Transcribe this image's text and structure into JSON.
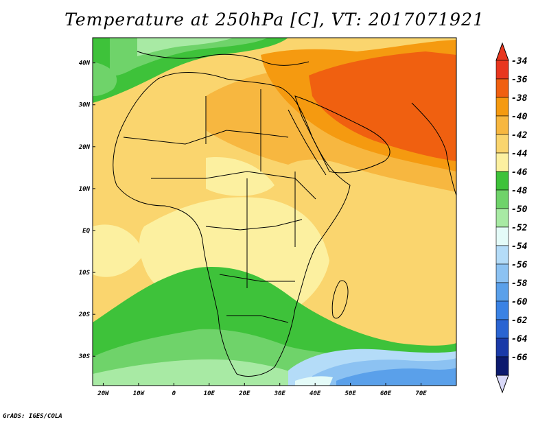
{
  "title": "Temperature at 250hPa [C], VT: 2017071921",
  "credit": "GrADS: IGES/COLA",
  "map": {
    "extent": {
      "lon": [
        -23,
        80
      ],
      "lat": [
        -37,
        46
      ]
    },
    "lat_ticks": [
      {
        "value": 40,
        "label": "40N"
      },
      {
        "value": 30,
        "label": "30N"
      },
      {
        "value": 20,
        "label": "20N"
      },
      {
        "value": 10,
        "label": "10N"
      },
      {
        "value": 0,
        "label": "EQ"
      },
      {
        "value": -10,
        "label": "10S"
      },
      {
        "value": -20,
        "label": "20S"
      },
      {
        "value": -30,
        "label": "30S"
      }
    ],
    "lon_ticks": [
      {
        "value": -20,
        "label": "20W"
      },
      {
        "value": -10,
        "label": "10W"
      },
      {
        "value": 0,
        "label": "0"
      },
      {
        "value": 10,
        "label": "10E"
      },
      {
        "value": 20,
        "label": "20E"
      },
      {
        "value": 30,
        "label": "30E"
      },
      {
        "value": 40,
        "label": "40E"
      },
      {
        "value": 50,
        "label": "50E"
      },
      {
        "value": 60,
        "label": "60E"
      },
      {
        "value": 70,
        "label": "70E"
      }
    ]
  },
  "colorbar": {
    "labels": [
      "-34",
      "-36",
      "-38",
      "-40",
      "-42",
      "-44",
      "-46",
      "-48",
      "-50",
      "-52",
      "-54",
      "-56",
      "-58",
      "-60",
      "-62",
      "-64",
      "-66"
    ],
    "colors": [
      "#e8361e",
      "#f06010",
      "#f59a10",
      "#f7b740",
      "#fad56e",
      "#fcf0a0",
      "#3ec23a",
      "#6fd36a",
      "#a8eaa4",
      "#e4fbf8",
      "#b4dcf8",
      "#8cc2f2",
      "#5aa0ea",
      "#3a82e4",
      "#2a64d2",
      "#1a3aa8",
      "#0c1a6e"
    ],
    "top_arrow_color": "#e8361e",
    "bottom_arrow_color": "#d8d8f8"
  }
}
